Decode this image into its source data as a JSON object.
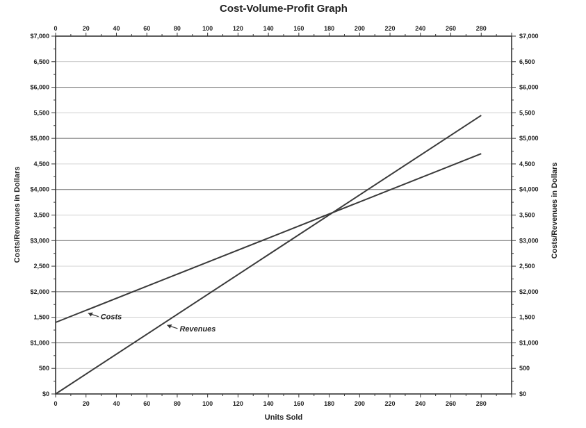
{
  "chart_data": {
    "type": "line",
    "title": "Cost-Volume-Profit Graph",
    "xlabel": "Units Sold",
    "ylabel": "Costs/Revenues in Dollars",
    "y2label": "Costs/Revenues in Dollars",
    "xlim": [
      0,
      300
    ],
    "ylim": [
      0,
      7000
    ],
    "x_ticks": [
      0,
      20,
      40,
      60,
      80,
      100,
      120,
      140,
      160,
      180,
      200,
      220,
      240,
      260,
      280
    ],
    "y_ticks": [
      0,
      500,
      1000,
      1500,
      2000,
      2500,
      3000,
      3500,
      4000,
      4500,
      5000,
      5500,
      6000,
      6500,
      7000
    ],
    "y_tick_labels": [
      "$0",
      "500",
      "$1,000",
      "1,500",
      "$2,000",
      "2,500",
      "$3,000",
      "3,500",
      "$4,000",
      "4,500",
      "$5,000",
      "5,500",
      "$6,000",
      "6,500",
      "$7,000"
    ],
    "y2_tick_labels": [
      "$0",
      "500",
      "$1,000",
      "1,500",
      "$2,000",
      "2,500",
      "$3,000",
      "3,500",
      "$4,000",
      "4,500",
      "$5,000",
      "5,500",
      "$6,000",
      "6,500",
      "$7,000"
    ],
    "grid": "horizontal",
    "series": [
      {
        "name": "Costs",
        "x": [
          0,
          280
        ],
        "y": [
          1400,
          4700
        ]
      },
      {
        "name": "Revenues",
        "x": [
          0,
          280
        ],
        "y": [
          0,
          5450
        ]
      }
    ],
    "annotations": [
      {
        "text": "Costs",
        "target_series": "Costs",
        "x": 20
      },
      {
        "text": "Revenues",
        "target_series": "Revenues",
        "x": 72
      }
    ]
  }
}
